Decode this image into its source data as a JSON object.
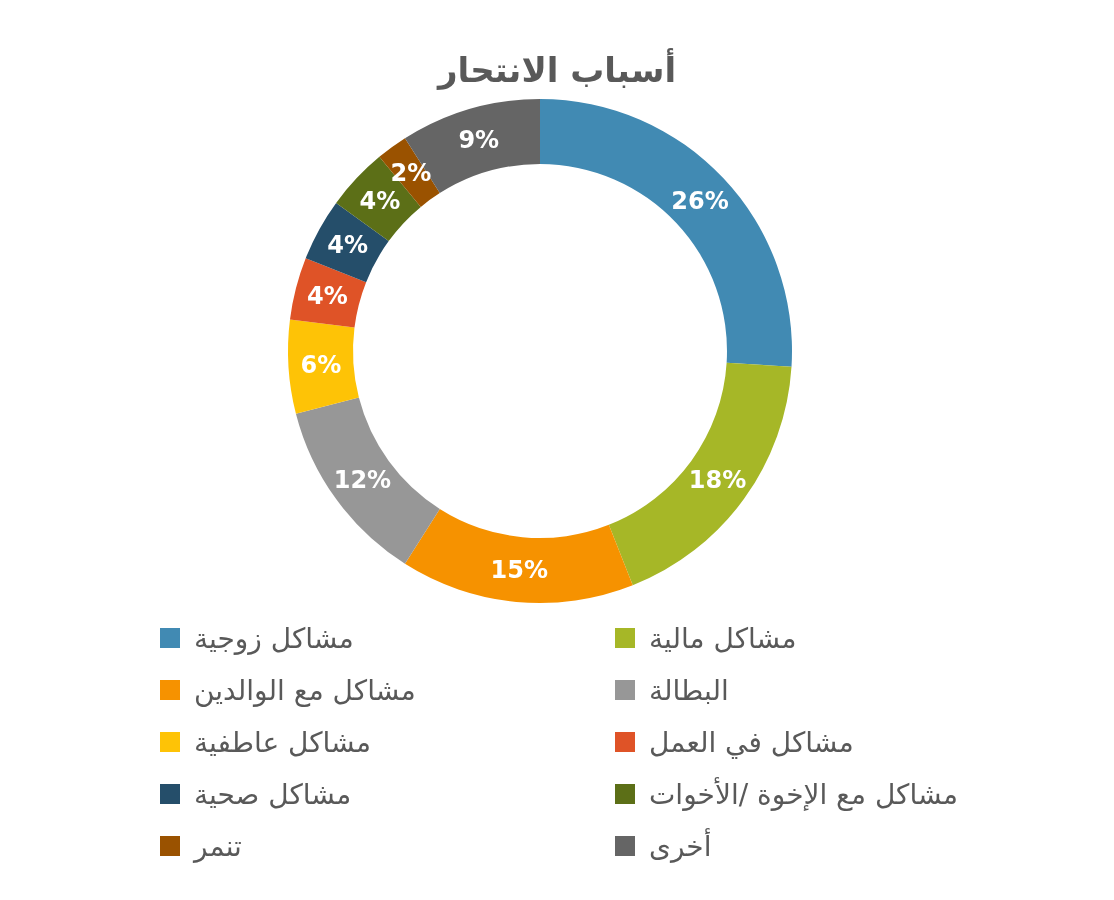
{
  "chart_data": {
    "type": "donut",
    "title": "أسباب الانتحار",
    "categories": [
      "مشاكل زوجية",
      "مشاكل مالية",
      "مشاكل مع الوالدين",
      "البطالة",
      "مشاكل عاطفية",
      "مشاكل في العمل",
      "مشاكل صحية",
      "مشاكل مع الإخوة /الأخوات",
      "تنمر",
      "أخرى"
    ],
    "values": [
      26,
      18,
      15,
      12,
      6,
      4,
      4,
      4,
      2,
      9
    ],
    "value_labels": [
      "26%",
      "18%",
      "15%",
      "12%",
      "6%",
      "4%",
      "4%",
      "4%",
      "2%",
      "9%"
    ],
    "colors": [
      "#418ab3",
      "#a6b727",
      "#f69200",
      "#979797",
      "#fec306",
      "#df5327",
      "#254e6a",
      "#5c6f17",
      "#9a5200",
      "#656565"
    ],
    "legend": "bottom"
  }
}
